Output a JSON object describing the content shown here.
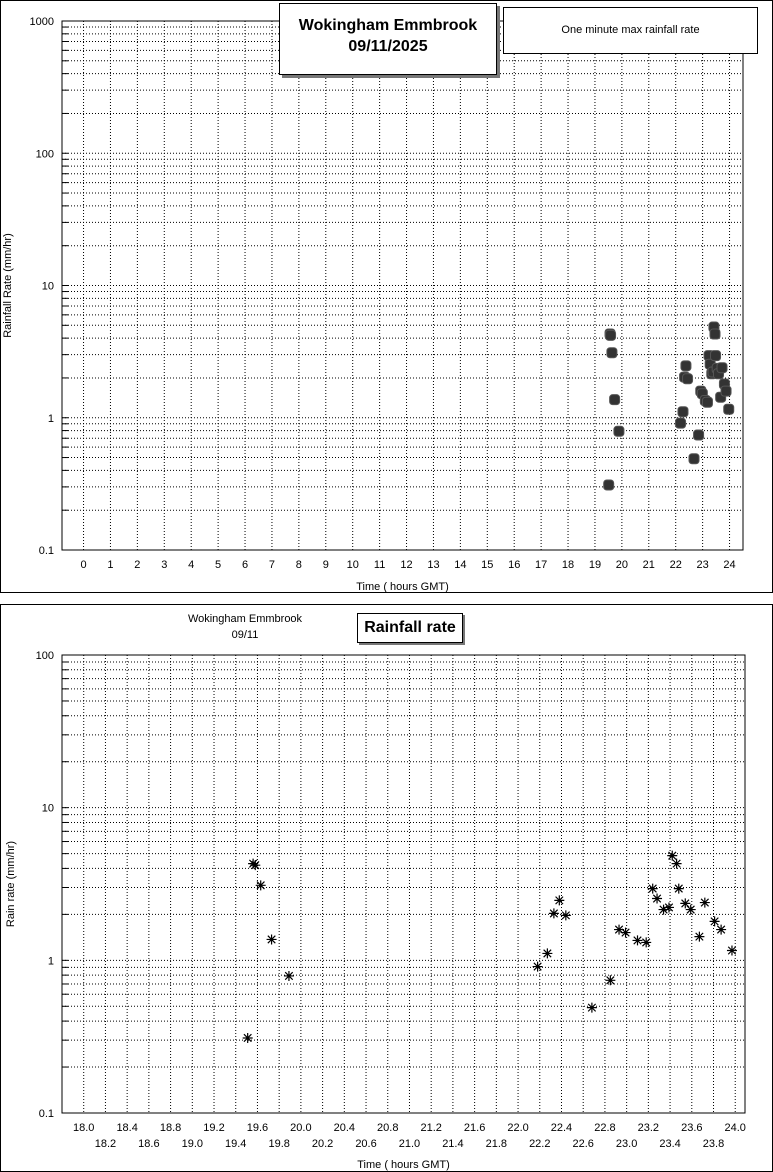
{
  "chart_data": [
    {
      "type": "scatter",
      "title": "Wokingham Emmbrook",
      "subtitle": "09/11/2025",
      "legend": "One minute max rainfall rate",
      "legend_placement": "top-right",
      "xlabel": "Time ( hours GMT)",
      "ylabel": "Rainfall Rate (mm/hr)",
      "xlim": [
        -0.8,
        24.5
      ],
      "ylim": [
        0.1,
        1000
      ],
      "yscale": "log",
      "grid": true,
      "xticks": [
        "0",
        "1",
        "2",
        "3",
        "4",
        "5",
        "6",
        "7",
        "8",
        "9",
        "10",
        "11",
        "12",
        "13",
        "14",
        "15",
        "16",
        "17",
        "18",
        "19",
        "20",
        "21",
        "22",
        "23",
        "24"
      ],
      "yticks": [
        "0.1",
        "1",
        "10",
        "100",
        "1000"
      ],
      "marker": "square",
      "x": [
        19.51,
        19.56,
        19.58,
        19.63,
        19.73,
        19.89,
        22.18,
        22.27,
        22.33,
        22.38,
        22.44,
        22.68,
        22.85,
        22.93,
        22.99,
        23.1,
        23.18,
        23.24,
        23.28,
        23.34,
        23.39,
        23.42,
        23.46,
        23.48,
        23.54,
        23.59,
        23.67,
        23.72,
        23.81,
        23.87,
        23.97
      ],
      "y": [
        0.31,
        4.3,
        4.2,
        3.1,
        1.37,
        0.79,
        0.91,
        1.11,
        2.03,
        2.47,
        1.97,
        0.49,
        0.74,
        1.59,
        1.52,
        1.35,
        1.31,
        2.95,
        2.54,
        2.15,
        2.22,
        4.85,
        4.3,
        2.95,
        2.36,
        2.15,
        1.43,
        2.39,
        1.8,
        1.59,
        1.16
      ]
    },
    {
      "type": "scatter",
      "title": "Rainfall rate",
      "subtitle": "Wokingham Emmbrook",
      "date": "09/11",
      "xlabel": "Time ( hours GMT)",
      "ylabel": "Rain rate (mm/hr)",
      "xlim": [
        17.8,
        24.09
      ],
      "ylim": [
        0.1,
        100
      ],
      "yscale": "log",
      "grid": true,
      "xticks": [
        "18.0",
        "18.2",
        "18.4",
        "18.6",
        "18.8",
        "19.0",
        "19.2",
        "19.4",
        "19.6",
        "19.8",
        "20.0",
        "20.2",
        "20.4",
        "20.6",
        "20.8",
        "21.0",
        "21.2",
        "21.4",
        "21.6",
        "21.8",
        "22.0",
        "22.2",
        "22.4",
        "22.6",
        "22.8",
        "23.0",
        "23.2",
        "23.4",
        "23.6",
        "23.8",
        "24.0"
      ],
      "yticks": [
        "0.1",
        "1",
        "10",
        "100"
      ],
      "marker": "asterisk",
      "x": [
        19.51,
        19.56,
        19.58,
        19.63,
        19.73,
        19.89,
        22.18,
        22.27,
        22.33,
        22.38,
        22.44,
        22.68,
        22.85,
        22.93,
        22.99,
        23.1,
        23.18,
        23.24,
        23.28,
        23.34,
        23.39,
        23.42,
        23.46,
        23.48,
        23.54,
        23.59,
        23.67,
        23.72,
        23.81,
        23.87,
        23.97
      ],
      "y": [
        0.31,
        4.3,
        4.2,
        3.1,
        1.37,
        0.79,
        0.91,
        1.11,
        2.03,
        2.47,
        1.97,
        0.49,
        0.74,
        1.59,
        1.52,
        1.35,
        1.31,
        2.95,
        2.54,
        2.15,
        2.22,
        4.85,
        4.3,
        2.95,
        2.36,
        2.15,
        1.43,
        2.39,
        1.8,
        1.59,
        1.16
      ]
    }
  ]
}
